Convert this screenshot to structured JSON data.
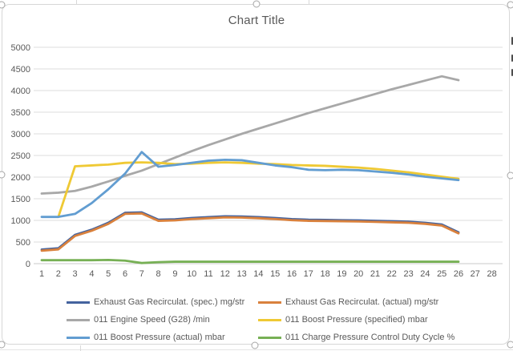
{
  "chart_data": {
    "type": "line",
    "title": "Chart Title",
    "xlabel": "",
    "ylabel": "",
    "ylim": [
      0,
      5000
    ],
    "grid": true,
    "legend_position": "bottom",
    "axes": {
      "x_ticks": [
        1,
        2,
        3,
        4,
        5,
        6,
        7,
        8,
        9,
        10,
        11,
        12,
        13,
        14,
        15,
        16,
        17,
        18,
        19,
        20,
        21,
        22,
        23,
        24,
        25,
        26,
        27,
        28
      ],
      "y_ticks": [
        0,
        500,
        1000,
        1500,
        2000,
        2500,
        3000,
        3500,
        4000,
        4500,
        5000
      ]
    },
    "x": [
      1,
      2,
      3,
      4,
      5,
      6,
      7,
      8,
      9,
      10,
      11,
      12,
      13,
      14,
      15,
      16,
      17,
      18,
      19,
      20,
      21,
      22,
      23,
      24,
      25,
      26
    ],
    "series": [
      {
        "name": "Exhaust Gas Recirculat. (spec.) mg/str",
        "color": "#44639E",
        "values": [
          325,
          355,
          665,
          785,
          945,
          1175,
          1185,
          1015,
          1025,
          1055,
          1075,
          1095,
          1090,
          1075,
          1055,
          1030,
          1015,
          1010,
          1005,
          1000,
          990,
          980,
          970,
          945,
          905,
          725
        ]
      },
      {
        "name": "Exhaust Gas Recirculat. (actual) mg/str",
        "color": "#D9813D",
        "values": [
          300,
          330,
          640,
          760,
          920,
          1150,
          1160,
          990,
          1000,
          1030,
          1050,
          1070,
          1065,
          1050,
          1030,
          1005,
          990,
          985,
          980,
          975,
          965,
          955,
          945,
          920,
          880,
          700
        ]
      },
      {
        "name": "011 Engine Speed (G28) /min",
        "color": "#A8A8A8",
        "values": [
          1620,
          1640,
          1680,
          1780,
          1900,
          2030,
          2150,
          2300,
          2450,
          2600,
          2740,
          2870,
          3000,
          3120,
          3240,
          3360,
          3480,
          3590,
          3700,
          3810,
          3920,
          4030,
          4130,
          4230,
          4330,
          4240
        ]
      },
      {
        "name": "011 Boost Pressure (specified) mbar",
        "color": "#EFC934",
        "values": [
          null,
          1080,
          2250,
          2270,
          2290,
          2330,
          2340,
          2330,
          2300,
          2310,
          2330,
          2340,
          2330,
          2310,
          2300,
          2280,
          2270,
          2260,
          2240,
          2220,
          2190,
          2150,
          2110,
          2060,
          2010,
          1960
        ]
      },
      {
        "name": "011 Boost Pressure (actual) mbar",
        "color": "#629DD1",
        "values": [
          1080,
          1080,
          1150,
          1400,
          1720,
          2080,
          2580,
          2240,
          2280,
          2330,
          2380,
          2400,
          2390,
          2330,
          2270,
          2230,
          2170,
          2160,
          2170,
          2160,
          2130,
          2100,
          2060,
          2010,
          1970,
          1930
        ]
      },
      {
        "name": "011 Charge Pressure Control Duty Cycle %",
        "color": "#77B055",
        "values": [
          80,
          80,
          80,
          80,
          85,
          70,
          15,
          35,
          45,
          45,
          45,
          45,
          45,
          45,
          45,
          45,
          45,
          45,
          45,
          45,
          45,
          45,
          45,
          45,
          45,
          45
        ]
      }
    ],
    "legend_columns": [
      [
        0,
        2,
        4
      ],
      [
        1,
        3,
        5
      ]
    ]
  },
  "colors": {
    "text": "#595959",
    "gridline": "#DCDCDC",
    "axis_line": "#C9C9C9",
    "chart_border": "#D7D7D7",
    "handle_border": "#A6A6A6",
    "background": "#FFFFFF"
  }
}
